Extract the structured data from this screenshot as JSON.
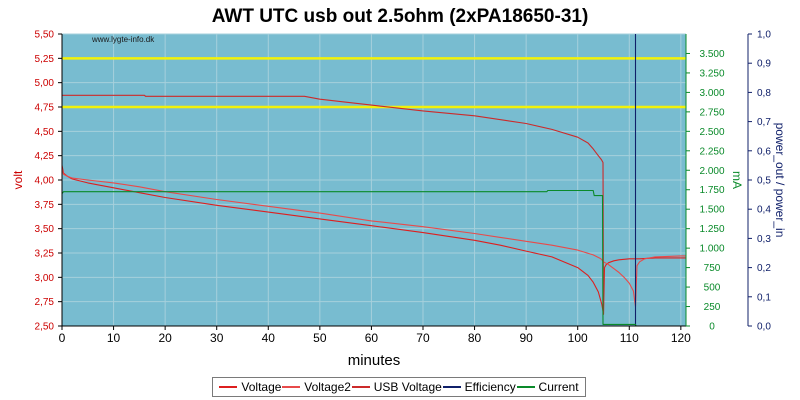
{
  "chart_data": {
    "type": "line",
    "title": "AWT UTC usb out 2.5ohm (2xPA18650-31)",
    "watermark": "www.lygte-info.dk",
    "xlabel": "minutes",
    "ylabel_left": "volt",
    "ylabel_right1": "mA",
    "ylabel_right2": "power_out / power_in",
    "xlim": [
      0,
      121
    ],
    "ylim_left": [
      2.5,
      5.5
    ],
    "ylim_right1": [
      0,
      3750
    ],
    "ylim_right2": [
      0,
      1.0
    ],
    "x_ticks": [
      "0",
      "10",
      "20",
      "30",
      "40",
      "50",
      "60",
      "70",
      "80",
      "90",
      "100",
      "110",
      "120"
    ],
    "left_ticks": [
      "2,50",
      "2,75",
      "3,00",
      "3,25",
      "3,50",
      "3,75",
      "4,00",
      "4,25",
      "4,50",
      "4,75",
      "5,00",
      "5,25",
      "5,50"
    ],
    "right1_ticks": [
      "0",
      "250",
      "500",
      "750",
      "1.000",
      "1.250",
      "1.500",
      "1.750",
      "2.000",
      "2.250",
      "2.500",
      "2.750",
      "3.000",
      "3.250",
      "3.500"
    ],
    "right2_ticks": [
      "0,0",
      "0,1",
      "0,2",
      "0,3",
      "0,4",
      "0,5",
      "0,6",
      "0,7",
      "0,8",
      "0,9",
      "1,0"
    ],
    "reference_lines": [
      4.75,
      5.25
    ],
    "grid": true,
    "legend_position": "bottom",
    "colors": {
      "plot_bg": "#78bcd0",
      "grid": "#a6d0dc",
      "voltage": "#dd1f1f",
      "current": "#0a8a2a",
      "efficiency": "#10206a",
      "reference": "#f2f20a",
      "left_axis": "#cc0000",
      "right1_axis": "#0a8a2a",
      "right2_axis": "#10206a"
    },
    "series": [
      {
        "name": "Voltage",
        "axis": "left",
        "color": "#dd1f1f",
        "x": [
          0,
          0.3,
          1,
          2,
          5,
          10,
          15,
          20,
          30,
          40,
          50,
          60,
          70,
          80,
          85,
          90,
          95,
          100,
          102,
          103,
          104,
          104.7,
          105,
          105.2,
          105.5,
          106,
          107,
          108,
          110,
          112,
          115,
          120,
          121
        ],
        "y": [
          4.15,
          4.07,
          4.04,
          4.01,
          3.97,
          3.92,
          3.87,
          3.82,
          3.74,
          3.67,
          3.6,
          3.53,
          3.46,
          3.38,
          3.33,
          3.27,
          3.21,
          3.1,
          3.02,
          2.95,
          2.85,
          2.72,
          2.62,
          3.1,
          3.13,
          3.15,
          3.17,
          3.18,
          3.19,
          3.19,
          3.2,
          3.2,
          3.2
        ]
      },
      {
        "name": "Voltage2",
        "axis": "left",
        "color": "#e84a4a",
        "x": [
          0,
          0.3,
          1,
          2,
          5,
          10,
          15,
          20,
          30,
          40,
          50,
          60,
          70,
          80,
          85,
          90,
          95,
          100,
          103,
          104.5,
          105,
          106,
          107,
          108,
          109,
          110,
          110.8,
          111.2,
          111.5,
          112,
          113,
          115,
          120,
          121
        ],
        "y": [
          4.12,
          4.06,
          4.04,
          4.02,
          4.0,
          3.97,
          3.93,
          3.88,
          3.8,
          3.73,
          3.66,
          3.58,
          3.52,
          3.45,
          3.41,
          3.37,
          3.33,
          3.28,
          3.23,
          3.19,
          3.16,
          3.13,
          3.09,
          3.05,
          3.0,
          2.94,
          2.86,
          2.7,
          3.12,
          3.16,
          3.19,
          3.21,
          3.22,
          3.22
        ]
      },
      {
        "name": "USB Voltage",
        "axis": "left",
        "color": "#cc2a2a",
        "x": [
          0,
          16,
          16.2,
          47,
          50,
          60,
          70,
          80,
          90,
          95,
          100,
          102,
          103,
          104,
          104.6,
          104.9,
          105
        ],
        "y": [
          4.87,
          4.87,
          4.86,
          4.86,
          4.83,
          4.77,
          4.71,
          4.66,
          4.58,
          4.52,
          4.44,
          4.38,
          4.32,
          4.25,
          4.21,
          4.18,
          2.62
        ]
      },
      {
        "name": "Efficiency",
        "axis": "right2",
        "color": "#10206a",
        "x": [
          111.2,
          111.2
        ],
        "y": [
          0.0,
          1.0
        ]
      },
      {
        "name": "Current",
        "axis": "right1",
        "color": "#0a8a2a",
        "x": [
          0,
          0.3,
          94,
          94.2,
          103,
          103.2,
          104.8,
          104.9,
          111.2,
          111.3,
          121
        ],
        "y": [
          1700,
          1725,
          1725,
          1740,
          1740,
          1675,
          1675,
          20,
          20,
          0,
          0
        ]
      }
    ]
  }
}
